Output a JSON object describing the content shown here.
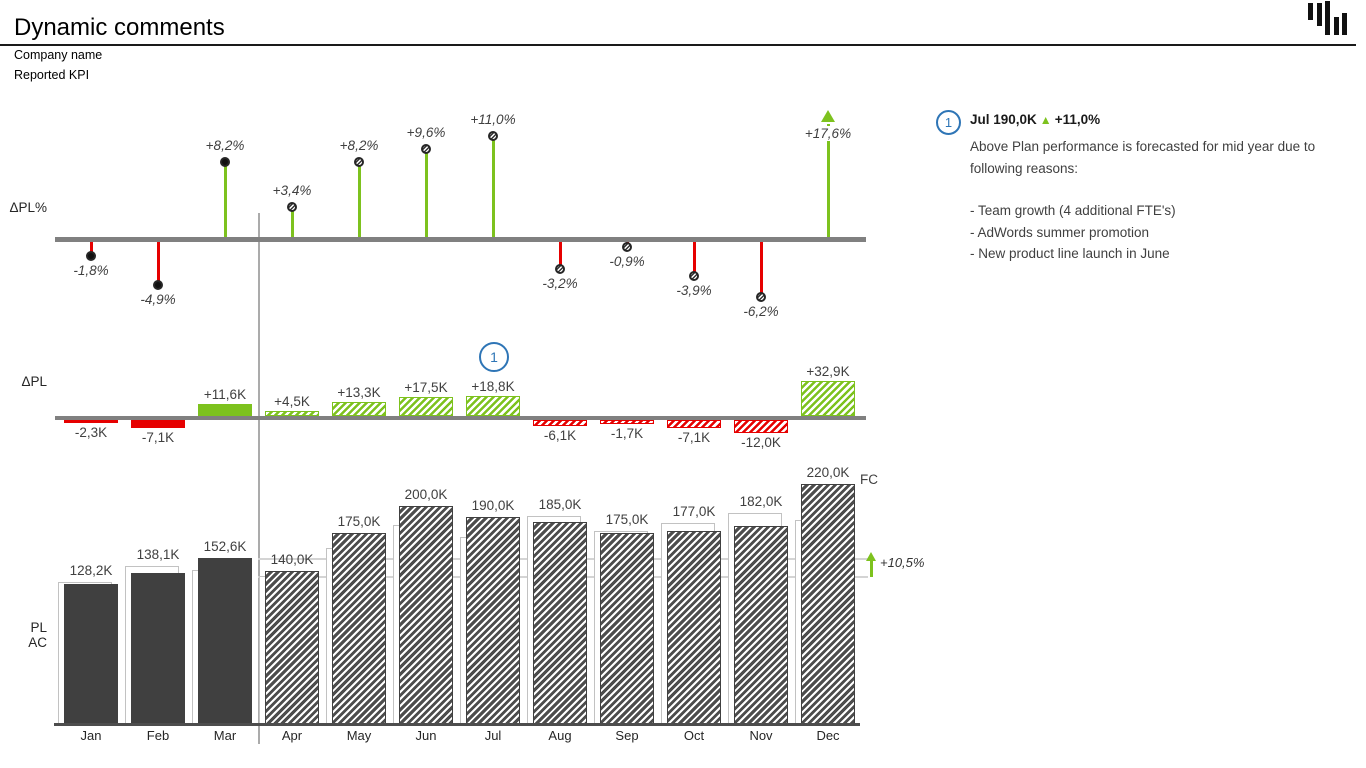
{
  "page": {
    "title": "Dynamic comments",
    "subtitle1": "Company name",
    "subtitle2": "Reported KPI"
  },
  "chart_data": {
    "type": "bar",
    "title": "Dynamic comments",
    "categories": [
      "Jan",
      "Feb",
      "Mar",
      "Apr",
      "May",
      "Jun",
      "Jul",
      "Aug",
      "Sep",
      "Oct",
      "Nov",
      "Dec"
    ],
    "scenario": [
      "AC",
      "AC",
      "AC",
      "FC",
      "FC",
      "FC",
      "FC",
      "FC",
      "FC",
      "FC",
      "FC",
      "FC"
    ],
    "series": [
      {
        "name": "PL",
        "values": [
          130.5,
          145.2,
          141.0,
          135.5,
          161.7,
          182.5,
          171.2,
          191.1,
          176.7,
          184.1,
          194.0,
          187.1
        ]
      },
      {
        "name": "AC/FC",
        "values": [
          128.2,
          138.1,
          152.6,
          140.0,
          175.0,
          200.0,
          190.0,
          185.0,
          175.0,
          177.0,
          182.0,
          220.0
        ],
        "labels": [
          "128,2K",
          "138,1K",
          "152,6K",
          "140,0K",
          "175,0K",
          "200,0K",
          "190,0K",
          "185,0K",
          "175,0K",
          "177,0K",
          "182,0K",
          "220,0K"
        ]
      },
      {
        "name": "ΔPL",
        "values": [
          -2.3,
          -7.1,
          11.6,
          4.5,
          13.3,
          17.5,
          18.8,
          -6.1,
          -1.7,
          -7.1,
          -12.0,
          32.9
        ],
        "labels": [
          "-2,3K",
          "-7,1K",
          "+11,6K",
          "+4,5K",
          "+13,3K",
          "+17,5K",
          "+18,8K",
          "-6,1K",
          "-1,7K",
          "-7,1K",
          "-12,0K",
          "+32,9K"
        ]
      },
      {
        "name": "ΔPL%",
        "values": [
          -1.8,
          -4.9,
          8.2,
          3.4,
          8.2,
          9.6,
          11.0,
          -3.2,
          -0.9,
          -3.9,
          -6.2,
          17.6
        ],
        "labels": [
          "-1,8%",
          "-4,9%",
          "+8,2%",
          "+3,4%",
          "+8,2%",
          "+9,6%",
          "+11,0%",
          "-3,2%",
          "-0,9%",
          "-3,9%",
          "-6,2%",
          "+17,6%"
        ]
      }
    ],
    "axis_titles": [
      "ΔPL%",
      "ΔPL",
      "PL",
      "AC"
    ],
    "growth_annotation": "+10,5%",
    "fc_marker": "FC",
    "ylim_columns": [
      0,
      230
    ],
    "legend_position": "none",
    "grid": false,
    "colors": {
      "positive": "#7DC21E",
      "negative": "#E60000",
      "actual": "#404040",
      "plan_outline": "#C2C2C2",
      "axis": "#808080",
      "comment_blue": "#2E75B6"
    }
  },
  "comment": {
    "marker": "1",
    "title": "Jul 190,0K",
    "triangle": "▲",
    "delta": "+11,0%",
    "intro": "Above Plan performance is forecasted for mid year due to following reasons:",
    "bullets": [
      "- Team growth (4 additional FTE's)",
      "- AdWords summer promotion",
      "- New product line launch in June"
    ]
  }
}
